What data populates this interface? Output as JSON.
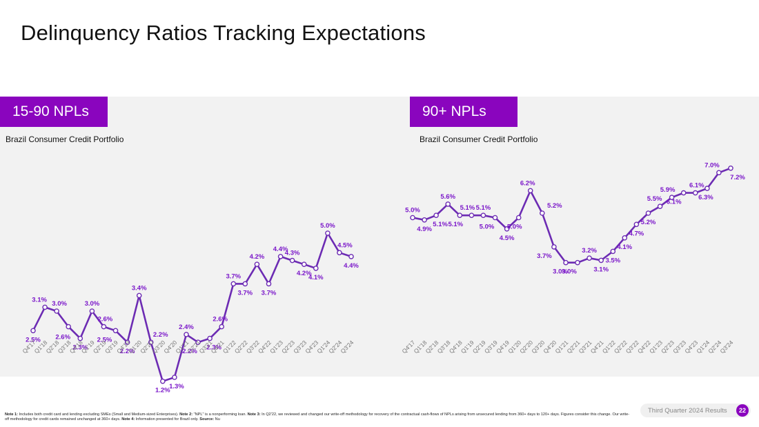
{
  "page": {
    "title": "Delinquency Ratios Tracking Expectations",
    "results_label": "Third Quarter 2024 Results",
    "page_number": "22"
  },
  "footnote": {
    "parts": [
      {
        "b": true,
        "t": "Note 1:"
      },
      {
        "b": false,
        "t": " Includes both credit card and lending excluding SMEs (Small and Medium-sized Enterprises). "
      },
      {
        "b": true,
        "t": "Note 2:"
      },
      {
        "b": false,
        "t": " \"NPL\" is a nonperforming loan. "
      },
      {
        "b": true,
        "t": "Note 3:"
      },
      {
        "b": false,
        "t": " In Q2'22, we reviewed and changed our write-off methodology for recovery of the contractual cash-flows of NPLs arising from unsecured lending from 360+ days to 120+ days. Figures consider this change. Our write-off methodology for credit cards remained unchanged at 360+ days. "
      },
      {
        "b": true,
        "t": "Note 4:"
      },
      {
        "b": false,
        "t": " Information presented for Brazil only. "
      },
      {
        "b": true,
        "t": "Source:"
      },
      {
        "b": false,
        "t": " Nu"
      }
    ]
  },
  "colors": {
    "accent": "#8a05be",
    "line": "#6c2bb3",
    "label": "#7a16c9",
    "panel": "#f2f2f2"
  },
  "chart_data": [
    {
      "type": "line",
      "title": "15-90 NPLs",
      "subtitle": "Brazil Consumer Credit Portfolio",
      "categories": [
        "Q4'17",
        "Q1'18",
        "Q2'18",
        "Q3'18",
        "Q4'18",
        "Q1'19",
        "Q2'19",
        "Q3'19",
        "Q4'19",
        "Q1'20",
        "Q2'20",
        "Q3'20",
        "Q4'20",
        "Q1'21",
        "Q2'21",
        "Q3'21",
        "Q4'21",
        "Q1'22",
        "Q2'22",
        "Q3'22",
        "Q4'22",
        "Q1'23",
        "Q2'23",
        "Q3'23",
        "Q4'23",
        "Q1'24",
        "Q2'24",
        "Q3'24"
      ],
      "values": [
        2.5,
        3.1,
        3.0,
        2.6,
        2.3,
        3.0,
        2.6,
        2.5,
        2.2,
        3.4,
        2.2,
        1.2,
        1.3,
        2.4,
        2.2,
        2.3,
        2.6,
        3.7,
        3.7,
        4.2,
        3.7,
        4.4,
        4.3,
        4.2,
        4.1,
        5.0,
        4.5,
        4.4
      ],
      "data_labels": [
        "2.5%",
        "3.1%",
        "3.0%",
        "2.6%",
        "2.3%",
        "3.0%",
        "2.6%",
        "2.5%",
        "2.2%",
        "3.4%",
        "2.2%",
        "1.2%",
        "1.3%",
        "2.4%",
        "2.2%",
        "2.3%",
        "2.6%",
        "3.7%",
        "3.7%",
        "4.2%",
        "3.7%",
        "4.4%",
        "4.3%",
        "4.2%",
        "4.1%",
        "5.0%",
        "4.5%",
        "4.4%"
      ],
      "xlabel": "",
      "ylabel": "",
      "ylim": [
        0,
        8
      ],
      "grid": false,
      "legend": "none"
    },
    {
      "type": "line",
      "title": "90+ NPLs",
      "subtitle": "Brazil Consumer Credit Portfolio",
      "categories": [
        "Q4'17",
        "Q1'18",
        "Q2'18",
        "Q3'18",
        "Q4'18",
        "Q1'19",
        "Q2'19",
        "Q3'19",
        "Q4'19",
        "Q1'20",
        "Q2'20",
        "Q3'20",
        "Q4'20",
        "Q1'21",
        "Q2'21",
        "Q3'21",
        "Q4'21",
        "Q1'22",
        "Q2'22",
        "Q3'22",
        "Q4'22",
        "Q1'23",
        "Q2'23",
        "Q3'23",
        "Q4'23",
        "Q1'24",
        "Q2'24",
        "Q3'24"
      ],
      "values": [
        5.0,
        4.9,
        5.1,
        5.6,
        5.1,
        5.1,
        5.1,
        5.0,
        4.5,
        5.0,
        6.2,
        5.2,
        3.7,
        3.0,
        3.0,
        3.2,
        3.1,
        3.5,
        4.1,
        4.7,
        5.2,
        5.5,
        5.9,
        6.1,
        6.1,
        6.3,
        7.0,
        7.2
      ],
      "data_labels": [
        "5.0%",
        "4.9%",
        "5.1%",
        "5.6%",
        "5.1%",
        "5.1%",
        "5.1%",
        "5.0%",
        "4.5%",
        "5.0%",
        "6.2%",
        "5.2%",
        "3.7%",
        "3.0%",
        "3.0%",
        "3.2%",
        "3.1%",
        "3.5%",
        "4.1%",
        "4.7%",
        "5.2%",
        "5.5%",
        "5.9%",
        "6.1%",
        "6.1%",
        "6.3%",
        "7.0%",
        "7.2%"
      ],
      "xlabel": "",
      "ylabel": "",
      "ylim": [
        0,
        8
      ],
      "grid": false,
      "legend": "none"
    }
  ]
}
